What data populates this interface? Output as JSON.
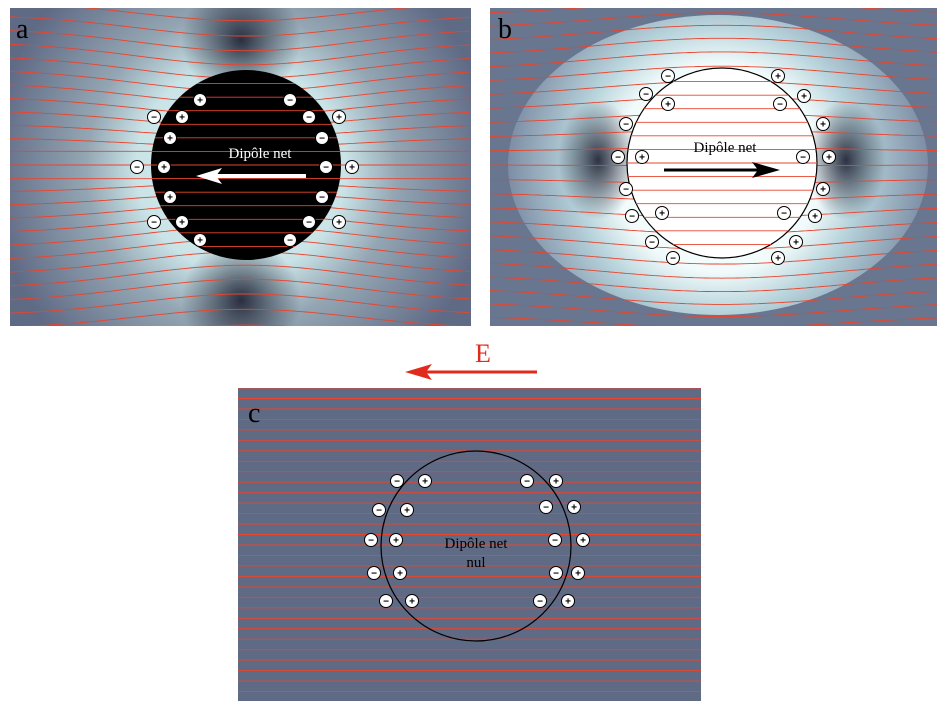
{
  "panels": [
    {
      "id": "a",
      "letter": "a",
      "label": "Dipôle net",
      "label2": "",
      "arrow_direction": "left"
    },
    {
      "id": "b",
      "letter": "b",
      "label": "Dipôle net",
      "label2": "",
      "arrow_direction": "right"
    },
    {
      "id": "c",
      "letter": "c",
      "label": "Dipôle net",
      "label2": "nul",
      "arrow_direction": "none"
    }
  ],
  "field": {
    "label": "E",
    "direction": "left"
  },
  "charge_symbols": {
    "positive": "+",
    "negative": "−"
  },
  "colors": {
    "field_line": "#e8452e",
    "field_label": "#e02a1c",
    "background_gray": "#5f6a85",
    "glow": "#d9eef2",
    "panel_a_particle": "#000000",
    "panel_b_particle": "#ffffff"
  }
}
